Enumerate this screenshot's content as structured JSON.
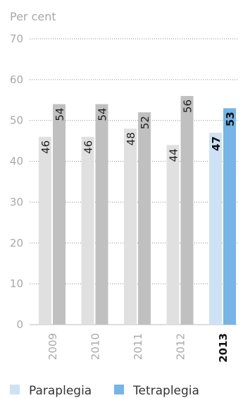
{
  "chart_data": {
    "type": "bar",
    "ylabel": "Per cent",
    "ylim": [
      0,
      70
    ],
    "yticks": [
      0,
      10,
      20,
      30,
      40,
      50,
      60,
      70
    ],
    "grid": true,
    "grid_style": "dotted",
    "legend_position": "bottom",
    "categories": [
      "2009",
      "2010",
      "2011",
      "2012",
      "2013"
    ],
    "highlight_category": "2013",
    "series": [
      {
        "name": "Paraplegia",
        "values": [
          46,
          46,
          48,
          44,
          47
        ],
        "color": "#e0e0e0",
        "highlight_color": "#cfe2f5"
      },
      {
        "name": "Tetraplegia",
        "values": [
          54,
          54,
          52,
          56,
          53
        ],
        "color": "#c0c0c0",
        "highlight_color": "#76b5e5"
      }
    ]
  }
}
